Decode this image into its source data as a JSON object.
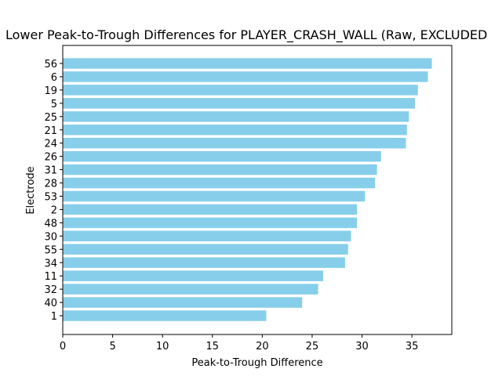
{
  "chart_data": {
    "type": "bar",
    "orientation": "horizontal",
    "title": "Lower Peak-to-Trough Differences for PLAYER_CRASH_WALL (Raw, EXCLUDED",
    "xlabel": "Peak-to-Trough Difference",
    "ylabel": "Electrode",
    "xlim": [
      0,
      39
    ],
    "xticks": [
      0,
      5,
      10,
      15,
      20,
      25,
      30,
      35
    ],
    "bar_color": "#87ceeb",
    "grid": false,
    "categories": [
      "56",
      "6",
      "19",
      "5",
      "25",
      "21",
      "24",
      "26",
      "31",
      "28",
      "53",
      "2",
      "48",
      "30",
      "55",
      "34",
      "11",
      "32",
      "40",
      "1"
    ],
    "values": [
      37.0,
      36.6,
      35.6,
      35.3,
      34.7,
      34.5,
      34.4,
      31.9,
      31.5,
      31.3,
      30.3,
      29.5,
      29.5,
      28.9,
      28.6,
      28.3,
      26.1,
      25.6,
      24.0,
      20.4
    ]
  }
}
